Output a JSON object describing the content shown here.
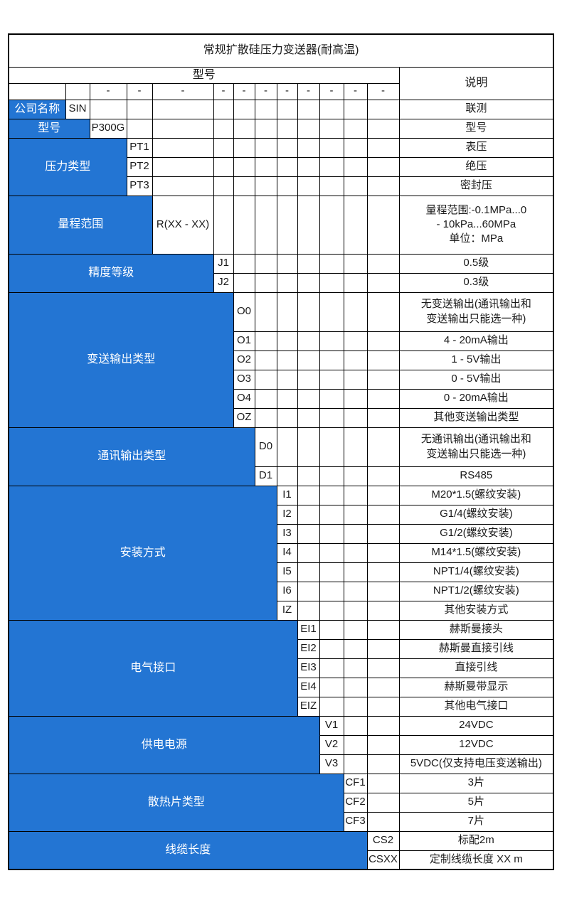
{
  "title": "常规扩散硅压力变送器(耐高温)",
  "header": {
    "model_label": "型号",
    "description_label": "说明",
    "separator_row": [
      "",
      "",
      "-",
      "-",
      "-",
      "-",
      "-",
      "-",
      "-",
      "-",
      "-",
      "-",
      "-"
    ]
  },
  "colors": {
    "category_blue": "#2375D3",
    "border": "#000000",
    "category_text": "#FFFFFF",
    "body_text": "#1A1A1A"
  },
  "groups": [
    {
      "id": "company-name",
      "label": "公司名称",
      "code_col": 2,
      "rows": [
        {
          "code": "SIN",
          "desc": "联测"
        }
      ]
    },
    {
      "id": "model",
      "label": "型号",
      "code_col": 3,
      "rows": [
        {
          "code": "P300G",
          "desc": "型号"
        }
      ]
    },
    {
      "id": "pressure-type",
      "label": "压力类型",
      "code_col": 4,
      "rows": [
        {
          "code": "PT1",
          "desc": "表压"
        },
        {
          "code": "PT2",
          "desc": "绝压"
        },
        {
          "code": "PT3",
          "desc": "密封压"
        }
      ]
    },
    {
      "id": "measuring-range",
      "label": "量程范围",
      "code_col": 5,
      "rows": [
        {
          "code": "R(XX - XX)",
          "desc": "量程范围:-0.1MPa...0\n- 10kPa...60MPa\n单位：MPa",
          "lines": 3
        }
      ]
    },
    {
      "id": "accuracy-class",
      "label": "精度等级",
      "code_col": 6,
      "rows": [
        {
          "code": "J1",
          "desc": "0.5级"
        },
        {
          "code": "J2",
          "desc": "0.3级"
        }
      ]
    },
    {
      "id": "transmission-output-type",
      "label": "变送输出类型",
      "code_col": 7,
      "rows": [
        {
          "code": "O0",
          "desc": "无变送输出(通讯输出和\n变送输出只能选一种)",
          "lines": 2
        },
        {
          "code": "O1",
          "desc": "4 - 20mA输出"
        },
        {
          "code": "O2",
          "desc": "1 - 5V输出"
        },
        {
          "code": "O3",
          "desc": "0 - 5V输出"
        },
        {
          "code": "O4",
          "desc": "0 - 20mA输出"
        },
        {
          "code": "OZ",
          "desc": "其他变送输出类型"
        }
      ]
    },
    {
      "id": "communication-output-type",
      "label": "通讯输出类型",
      "code_col": 8,
      "rows": [
        {
          "code": "D0",
          "desc": "无通讯输出(通讯输出和\n变送输出只能选一种)",
          "lines": 2
        },
        {
          "code": "D1",
          "desc": "RS485"
        }
      ]
    },
    {
      "id": "installation-method",
      "label": "安装方式",
      "code_col": 9,
      "rows": [
        {
          "code": "I1",
          "desc": "M20*1.5(螺纹安装)"
        },
        {
          "code": "I2",
          "desc": "G1/4(螺纹安装)"
        },
        {
          "code": "I3",
          "desc": "G1/2(螺纹安装)"
        },
        {
          "code": "I4",
          "desc": "M14*1.5(螺纹安装)"
        },
        {
          "code": "I5",
          "desc": "NPT1/4(螺纹安装)"
        },
        {
          "code": "I6",
          "desc": "NPT1/2(螺纹安装)"
        },
        {
          "code": "IZ",
          "desc": "其他安装方式"
        }
      ]
    },
    {
      "id": "electrical-interface",
      "label": "电气接口",
      "code_col": 10,
      "rows": [
        {
          "code": "EI1",
          "desc": "赫斯曼接头"
        },
        {
          "code": "EI2",
          "desc": "赫斯曼直接引线"
        },
        {
          "code": "EI3",
          "desc": "直接引线"
        },
        {
          "code": "EI4",
          "desc": "赫斯曼带显示"
        },
        {
          "code": "EIZ",
          "desc": "其他电气接口"
        }
      ]
    },
    {
      "id": "power-supply",
      "label": "供电电源",
      "code_col": 11,
      "rows": [
        {
          "code": "V1",
          "desc": "24VDC"
        },
        {
          "code": "V2",
          "desc": "12VDC"
        },
        {
          "code": "V3",
          "desc": "5VDC(仅支持电压变送输出)"
        }
      ]
    },
    {
      "id": "heat-sink-type",
      "label": "散热片类型",
      "code_col": 12,
      "rows": [
        {
          "code": "CF1",
          "desc": "3片"
        },
        {
          "code": "CF2",
          "desc": "5片"
        },
        {
          "code": "CF3",
          "desc": "7片"
        }
      ]
    },
    {
      "id": "cable-length",
      "label": "线缆长度",
      "code_col": 13,
      "rows": [
        {
          "code": "CS2",
          "desc": "标配2m"
        },
        {
          "code": "CSXX",
          "desc": "定制线缆长度 XX m"
        }
      ]
    }
  ]
}
